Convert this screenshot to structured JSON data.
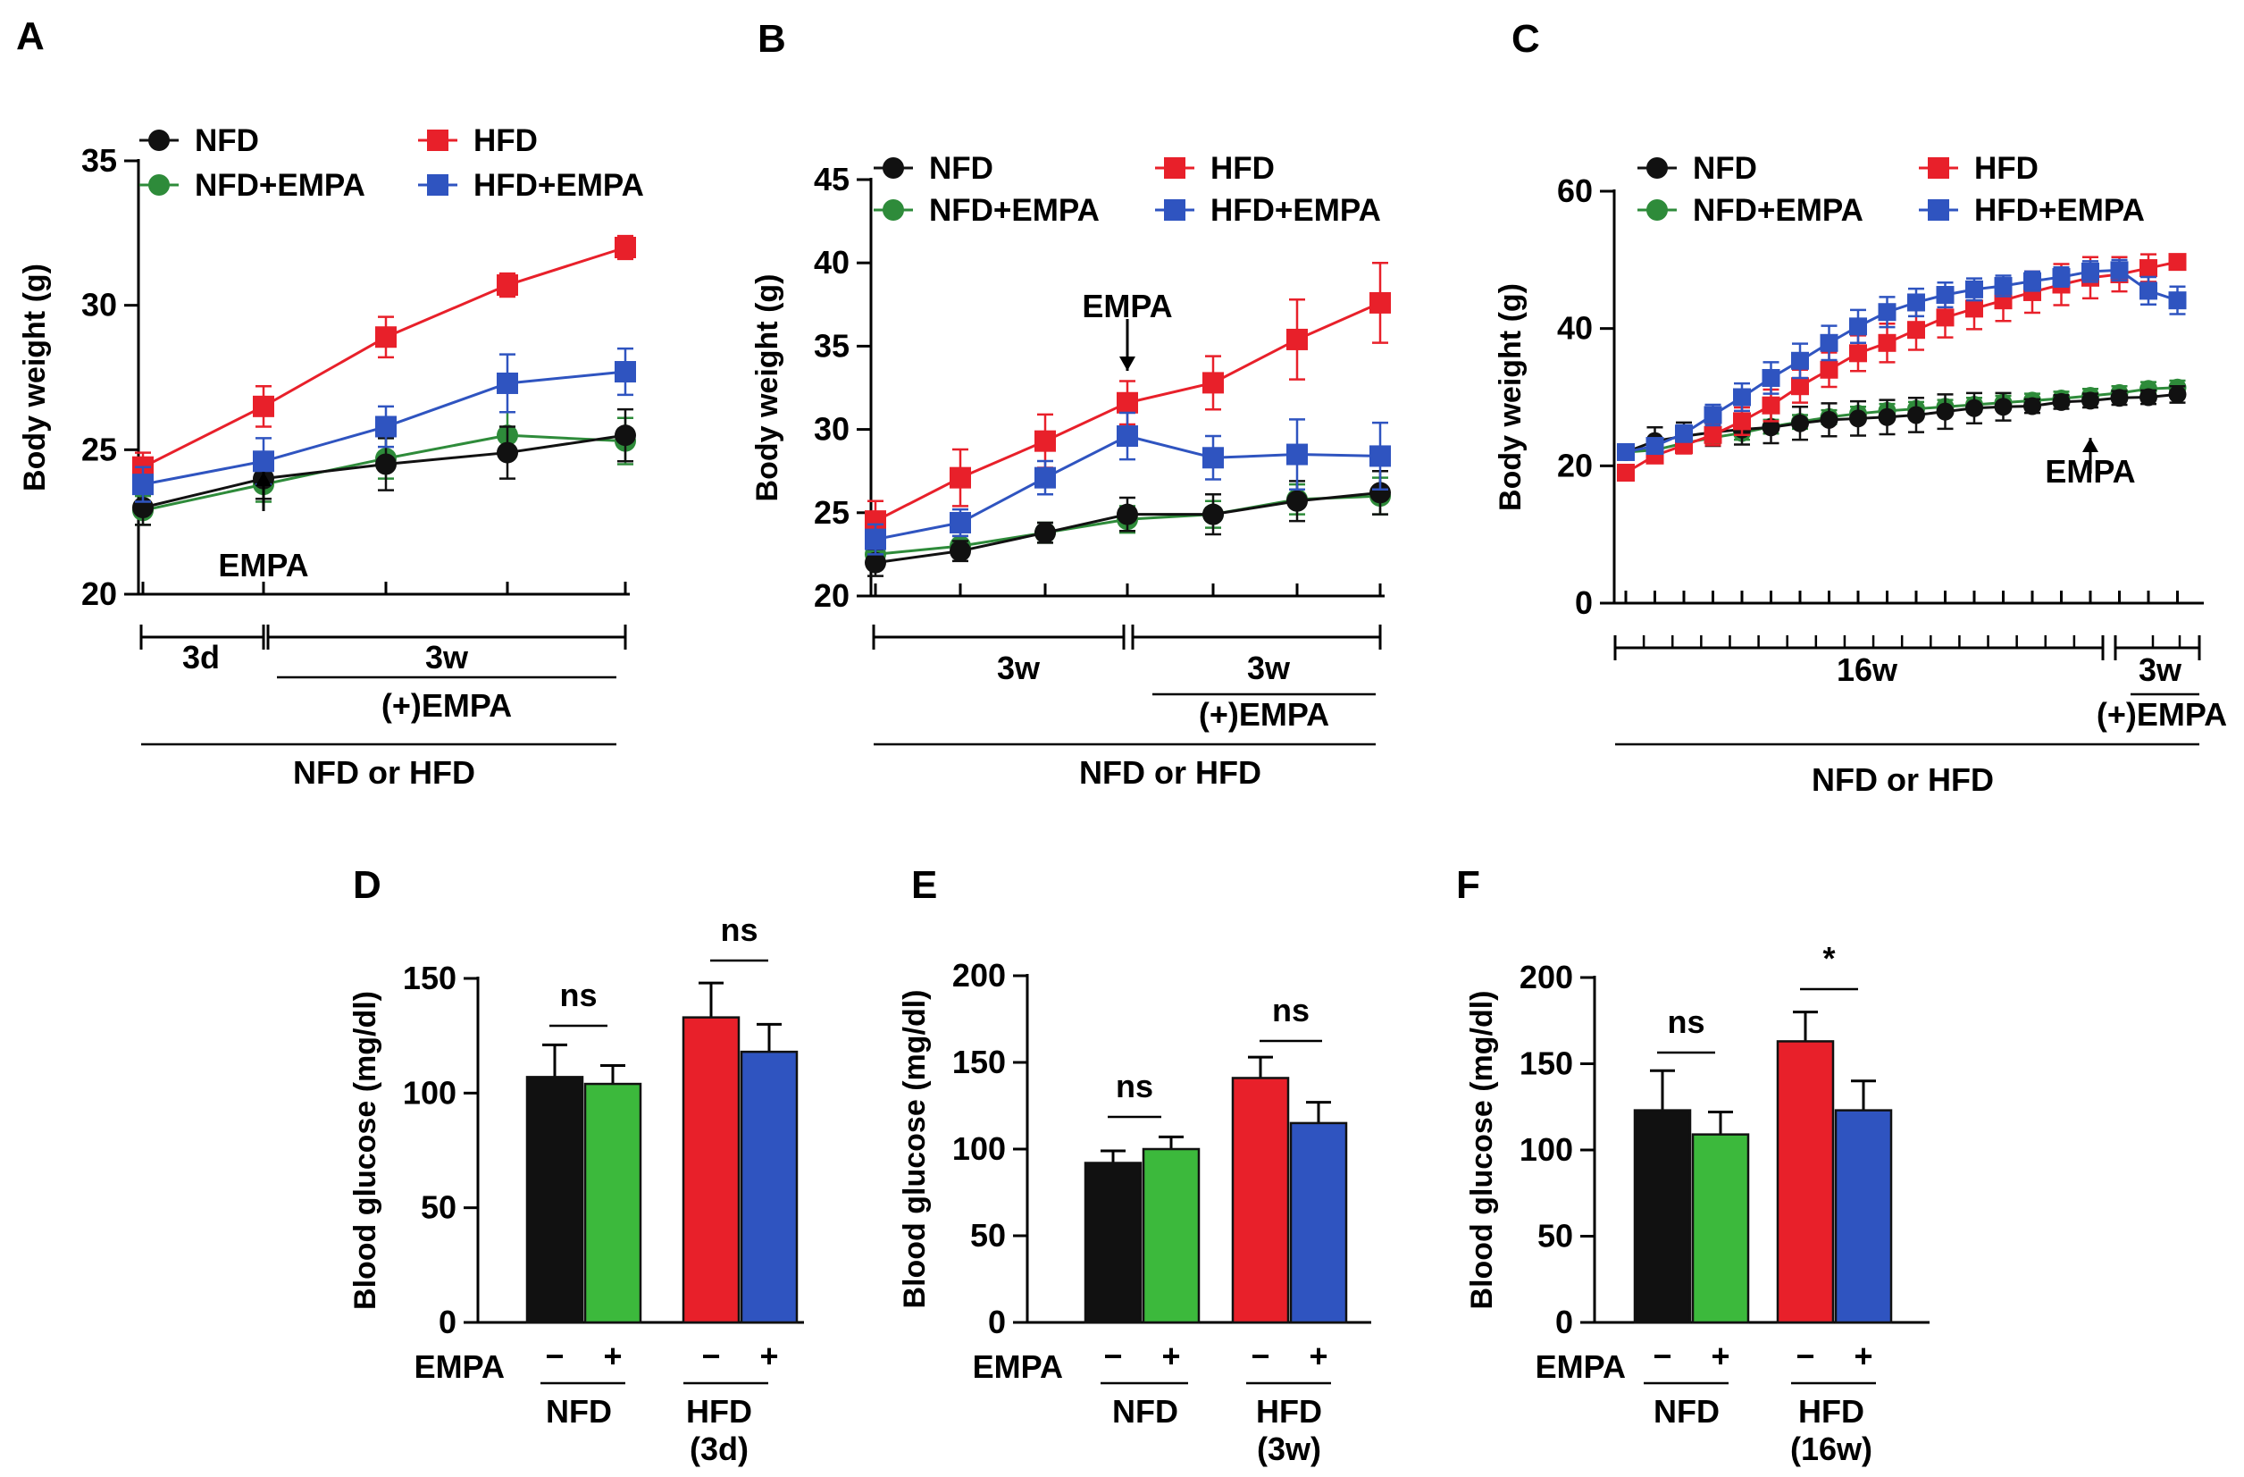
{
  "colors": {
    "NFD": "#111111",
    "HFD": "#e8202a",
    "NFD+EMPA": "#2e8b3a",
    "HFD+EMPA": "#2f54c0",
    "bar_NFD_plus": "#3cb93c"
  },
  "chart_data": [
    {
      "id": "A",
      "panel_label": "A",
      "type": "line",
      "ylabel": "Body weight (g)",
      "ylim": [
        20,
        35
      ],
      "yticks": [
        20,
        25,
        30,
        35
      ],
      "x": [
        0,
        1,
        2,
        3,
        4
      ],
      "series": [
        {
          "name": "NFD",
          "marker": "circle",
          "values": [
            23.0,
            24.0,
            24.5,
            24.9,
            25.5
          ],
          "err": [
            0.6,
            0.7,
            0.9,
            0.9,
            0.9
          ]
        },
        {
          "name": "HFD",
          "marker": "square",
          "values": [
            24.4,
            26.5,
            28.9,
            30.7,
            32.0
          ],
          "err": [
            0.5,
            0.7,
            0.7,
            0.4,
            0.4
          ]
        },
        {
          "name": "NFD+EMPA",
          "marker": "circle",
          "values": [
            22.9,
            23.8,
            24.7,
            25.5,
            25.3
          ],
          "err": [
            0.5,
            0.6,
            0.7,
            0.8,
            0.8
          ]
        },
        {
          "name": "HFD+EMPA",
          "marker": "square",
          "values": [
            23.8,
            24.6,
            25.8,
            27.3,
            27.7
          ],
          "err": [
            0.6,
            0.8,
            0.7,
            1.0,
            0.8
          ]
        }
      ],
      "annotation": {
        "text": "EMPA",
        "x": 1,
        "direction": "up"
      },
      "timeline": {
        "seg1": "3d",
        "seg2": "3w",
        "treat": "(+)EMPA",
        "diet": "NFD or HFD"
      }
    },
    {
      "id": "B",
      "panel_label": "B",
      "type": "line",
      "ylabel": "Body weight (g)",
      "ylim": [
        20,
        45
      ],
      "yticks": [
        20,
        25,
        30,
        35,
        40,
        45
      ],
      "x": [
        0,
        1,
        2,
        3,
        4,
        5,
        6
      ],
      "series": [
        {
          "name": "NFD",
          "marker": "circle",
          "values": [
            22.0,
            22.7,
            23.8,
            24.9,
            24.9,
            25.7,
            26.2
          ],
          "err": [
            0.8,
            0.6,
            0.6,
            1.0,
            1.2,
            1.2,
            1.3
          ]
        },
        {
          "name": "HFD",
          "marker": "square",
          "values": [
            24.5,
            27.1,
            29.3,
            31.6,
            32.8,
            35.4,
            37.6
          ],
          "err": [
            1.2,
            1.7,
            1.6,
            1.3,
            1.6,
            2.4,
            2.4
          ]
        },
        {
          "name": "NFD+EMPA",
          "marker": "circle",
          "values": [
            22.5,
            23.0,
            23.8,
            24.6,
            24.9,
            25.8,
            26.0
          ],
          "err": [
            0.7,
            0.6,
            0.6,
            0.8,
            0.8,
            0.9,
            1.1
          ]
        },
        {
          "name": "HFD+EMPA",
          "marker": "square",
          "values": [
            23.4,
            24.4,
            27.1,
            29.6,
            28.3,
            28.5,
            28.4
          ],
          "err": [
            0.9,
            0.8,
            1.0,
            1.4,
            1.3,
            2.1,
            2.0
          ]
        }
      ],
      "annotation": {
        "text": "EMPA",
        "x": 3,
        "direction": "down"
      },
      "timeline": {
        "seg1": "3w",
        "seg2": "3w",
        "treat": "(+)EMPA",
        "diet": "NFD or HFD"
      }
    },
    {
      "id": "C",
      "panel_label": "C",
      "type": "line",
      "ylabel": "Body weight (g)",
      "ylim": [
        0,
        60
      ],
      "yticks": [
        0,
        20,
        40,
        60
      ],
      "x": [
        0,
        1,
        2,
        3,
        4,
        5,
        6,
        7,
        8,
        9,
        10,
        11,
        12,
        13,
        14,
        15,
        16,
        17,
        18,
        19
      ],
      "series": [
        {
          "name": "NFD",
          "marker": "circle",
          "values": [
            22.0,
            23.6,
            24.3,
            24.9,
            25.3,
            25.6,
            26.2,
            26.7,
            26.9,
            27.1,
            27.4,
            27.9,
            28.4,
            28.6,
            28.7,
            29.3,
            29.5,
            29.9,
            30.0,
            30.4
          ],
          "err": [
            1.0,
            2.0,
            2.0,
            2.0,
            2.2,
            2.3,
            2.4,
            2.4,
            2.5,
            2.5,
            2.5,
            2.5,
            2.2,
            2.0,
            1.0,
            1.0,
            1.0,
            1.0,
            1.0,
            1.2
          ]
        },
        {
          "name": "HFD",
          "marker": "square",
          "values": [
            19.0,
            21.5,
            23.0,
            24.5,
            26.5,
            28.8,
            31.6,
            34.0,
            36.4,
            37.9,
            39.8,
            41.6,
            42.9,
            44.1,
            45.3,
            46.4,
            47.4,
            47.9,
            48.8,
            49.7
          ],
          "err": [
            0.5,
            1.0,
            1.2,
            1.5,
            2.0,
            2.3,
            2.4,
            2.5,
            2.6,
            2.8,
            2.9,
            2.9,
            3.0,
            3.0,
            3.0,
            3.0,
            3.0,
            2.5,
            2.0,
            1.0
          ]
        },
        {
          "name": "NFD+EMPA",
          "marker": "circle",
          "values": [
            22.0,
            22.3,
            23.3,
            24.1,
            24.8,
            25.7,
            26.4,
            27.1,
            27.6,
            28.0,
            28.3,
            28.6,
            28.9,
            29.2,
            29.5,
            29.8,
            30.2,
            30.6,
            31.2,
            31.4
          ],
          "err": [
            0.8,
            1.0,
            1.0,
            1.0,
            1.0,
            1.0,
            1.0,
            1.0,
            1.0,
            1.0,
            1.0,
            1.0,
            1.0,
            1.0,
            1.0,
            1.0,
            1.0,
            1.0,
            1.0,
            1.0
          ]
        },
        {
          "name": "HFD+EMPA",
          "marker": "square",
          "values": [
            22.0,
            22.9,
            24.7,
            27.4,
            30.0,
            32.8,
            35.3,
            37.9,
            40.3,
            42.4,
            43.8,
            44.9,
            45.7,
            46.2,
            46.9,
            47.5,
            48.3,
            48.5,
            45.5,
            44.1
          ],
          "err": [
            0.8,
            1.0,
            1.2,
            1.5,
            2.0,
            2.3,
            2.5,
            2.5,
            2.4,
            2.2,
            2.0,
            1.8,
            1.6,
            1.5,
            1.4,
            1.4,
            1.5,
            1.5,
            2.0,
            2.0
          ]
        }
      ],
      "annotation": {
        "text": "EMPA",
        "x": 16,
        "direction": "up"
      },
      "timeline": {
        "seg1": "16w",
        "seg2": "3w",
        "treat": "(+)EMPA",
        "diet": "NFD or HFD"
      }
    },
    {
      "id": "D",
      "panel_label": "D",
      "type": "bar",
      "ylabel": "Blood glucose (mg/dl)",
      "ylim": [
        0,
        150
      ],
      "yticks": [
        0,
        50,
        100,
        150
      ],
      "bars": [
        {
          "group": "NFD",
          "empa": "−",
          "value": 107,
          "err": 14,
          "color": "#111111"
        },
        {
          "group": "NFD",
          "empa": "+",
          "value": 104,
          "err": 8,
          "color": "#3cb93c"
        },
        {
          "group": "HFD",
          "empa": "−",
          "value": 133,
          "err": 15,
          "color": "#e8202a"
        },
        {
          "group": "HFD",
          "empa": "+",
          "value": 118,
          "err": 12,
          "color": "#2f54c0"
        }
      ],
      "sig": [
        "ns",
        "ns"
      ],
      "empa_label": "EMPA",
      "group_labels": [
        [
          "NFD"
        ],
        [
          "HFD",
          "(3d)"
        ]
      ]
    },
    {
      "id": "E",
      "panel_label": "E",
      "type": "bar",
      "ylabel": "Blood glucose (mg/dl)",
      "ylim": [
        0,
        200
      ],
      "yticks": [
        0,
        50,
        100,
        150,
        200
      ],
      "bars": [
        {
          "group": "NFD",
          "empa": "−",
          "value": 92,
          "err": 7,
          "color": "#111111"
        },
        {
          "group": "NFD",
          "empa": "+",
          "value": 100,
          "err": 7,
          "color": "#3cb93c"
        },
        {
          "group": "HFD",
          "empa": "−",
          "value": 141,
          "err": 12,
          "color": "#e8202a"
        },
        {
          "group": "HFD",
          "empa": "+",
          "value": 115,
          "err": 12,
          "color": "#2f54c0"
        }
      ],
      "sig": [
        "ns",
        "ns"
      ],
      "empa_label": "EMPA",
      "group_labels": [
        [
          "NFD"
        ],
        [
          "HFD",
          "(3w)"
        ]
      ]
    },
    {
      "id": "F",
      "panel_label": "F",
      "type": "bar",
      "ylabel": "Blood glucose (mg/dl)",
      "ylim": [
        0,
        200
      ],
      "yticks": [
        0,
        50,
        100,
        150,
        200
      ],
      "bars": [
        {
          "group": "NFD",
          "empa": "−",
          "value": 123,
          "err": 23,
          "color": "#111111"
        },
        {
          "group": "NFD",
          "empa": "+",
          "value": 109,
          "err": 13,
          "color": "#3cb93c"
        },
        {
          "group": "HFD",
          "empa": "−",
          "value": 163,
          "err": 17,
          "color": "#e8202a"
        },
        {
          "group": "HFD",
          "empa": "+",
          "value": 123,
          "err": 17,
          "color": "#2f54c0"
        }
      ],
      "sig": [
        "ns",
        "*"
      ],
      "empa_label": "EMPA",
      "group_labels": [
        [
          "NFD"
        ],
        [
          "HFD",
          "(16w)"
        ]
      ]
    }
  ]
}
